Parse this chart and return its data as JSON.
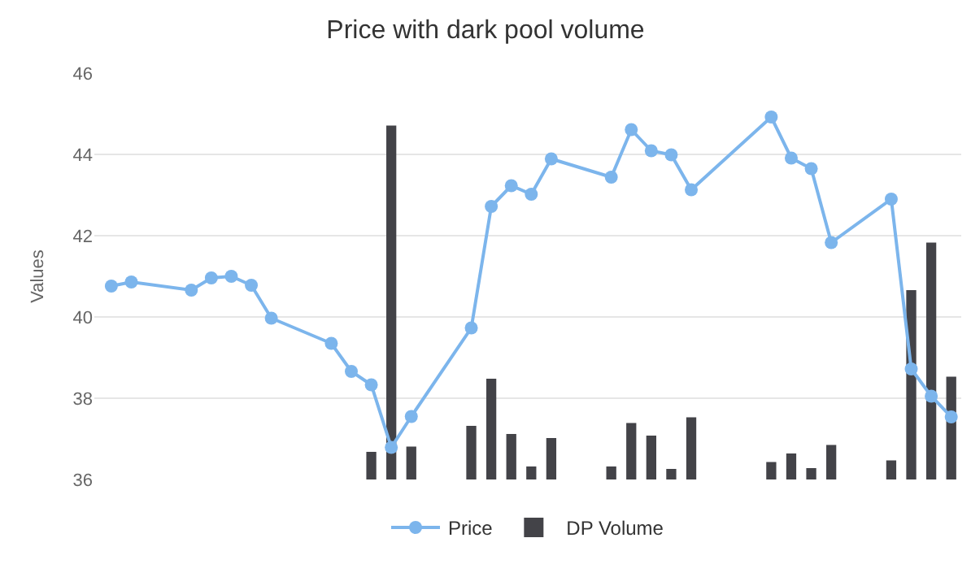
{
  "chart_data": {
    "type": "line",
    "title": "Price with dark pool volume",
    "ylabel": "Values",
    "categories": [
      null,
      null,
      null,
      null,
      null,
      null,
      null,
      null,
      null,
      null,
      null,
      null,
      null,
      null,
      null,
      null,
      null,
      null,
      null,
      null,
      null,
      null,
      null,
      null,
      null,
      null,
      null,
      null,
      null,
      null,
      null,
      null,
      null,
      null,
      null,
      null,
      null,
      null,
      null,
      null,
      null,
      null,
      null
    ],
    "series": [
      {
        "name": "Price",
        "color": "#7cb5ec",
        "values": [
          40.76,
          40.86,
          null,
          null,
          40.66,
          40.96,
          41.0,
          40.78,
          39.97,
          null,
          null,
          39.35,
          38.66,
          38.33,
          36.79,
          37.55,
          null,
          null,
          39.73,
          42.72,
          43.23,
          43.02,
          43.89,
          null,
          null,
          43.44,
          44.61,
          44.09,
          43.99,
          43.13,
          null,
          null,
          null,
          44.92,
          43.91,
          43.65,
          41.83,
          null,
          null,
          42.9,
          38.72,
          38.05,
          37.54
        ]
      },
      {
        "name": "DP Volume",
        "type": "bar",
        "color": "#434348",
        "values": [
          null,
          null,
          null,
          null,
          null,
          null,
          null,
          null,
          null,
          null,
          null,
          null,
          null,
          0.68,
          8.71,
          0.81,
          null,
          null,
          1.32,
          2.48,
          1.12,
          0.32,
          1.02,
          null,
          null,
          0.32,
          1.39,
          1.08,
          0.26,
          1.53,
          null,
          null,
          null,
          0.43,
          0.64,
          0.28,
          0.85,
          null,
          null,
          0.47,
          4.66,
          5.83,
          2.53
        ],
        "base": [
          null,
          null,
          null,
          null,
          null,
          null,
          null,
          null,
          null,
          null,
          null,
          null,
          null,
          36,
          36,
          36,
          null,
          null,
          36,
          36,
          36,
          36,
          36,
          null,
          null,
          36,
          36,
          36,
          36,
          36,
          null,
          null,
          null,
          36,
          36,
          36,
          36,
          null,
          null,
          36,
          36,
          36,
          36
        ]
      }
    ],
    "ylim": [
      36,
      46
    ],
    "yticks": [
      36,
      38,
      40,
      42,
      44,
      46
    ],
    "grid": "y",
    "legend": "bottom",
    "marker": "circle",
    "line_style": "solid"
  }
}
